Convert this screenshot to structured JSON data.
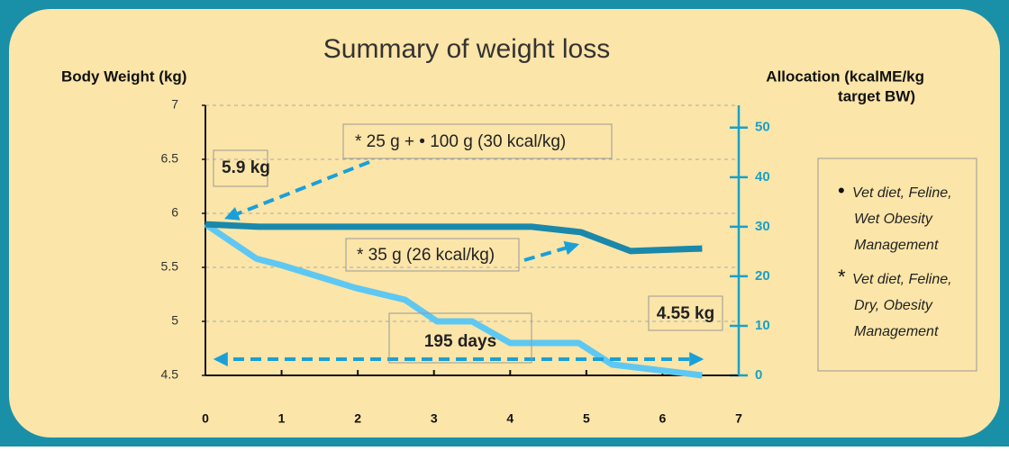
{
  "chart_data": {
    "type": "line",
    "title": "Summary of weight loss",
    "ylabel": "Body Weight (kg)",
    "y2label": [
      "Allocation (kcalME/kg",
      "target BW)"
    ],
    "xlim": [
      0,
      7
    ],
    "xticks": [
      0,
      1,
      2,
      3,
      4,
      5,
      6,
      7
    ],
    "ylim": [
      4.5,
      7
    ],
    "yticks": [
      4.5,
      5,
      5.5,
      6,
      6.5,
      7
    ],
    "y2lim": [
      0,
      54.5
    ],
    "y2ticks": [
      0,
      10,
      20,
      30,
      40,
      50
    ],
    "grid": true,
    "series": [
      {
        "color": "#5ec8f2",
        "x": [
          0,
          0.67,
          1,
          1.97,
          2.62,
          3.04,
          3.5,
          4.0,
          4.9,
          5.34,
          5.58,
          6.52
        ],
        "values": [
          5.9,
          5.58,
          5.52,
          5.31,
          5.2,
          5.0,
          5.0,
          4.8,
          4.8,
          4.6,
          4.58,
          4.5
        ]
      },
      {
        "color": "#1a88aa",
        "axis": "y2",
        "x": [
          0,
          0.7,
          4.28,
          4.93,
          5.58,
          6.52
        ],
        "values": [
          30.5,
          30,
          30,
          28.9,
          25.1,
          25.6
        ]
      }
    ],
    "annotations": [
      "5.9 kg",
      "* 25 g + • 100 g (30 kcal/kg)",
      "* 35 g (26 kcal/kg)",
      "195 days",
      "4.55 kg"
    ],
    "legend": [
      {
        "marker": "•",
        "lines": [
          "Vet diet, Feline,",
          "Wet Obesity",
          "Management"
        ]
      },
      {
        "marker": "*",
        "lines": [
          "Vet diet, Feline,",
          "Dry, Obesity",
          "Management"
        ]
      }
    ]
  }
}
